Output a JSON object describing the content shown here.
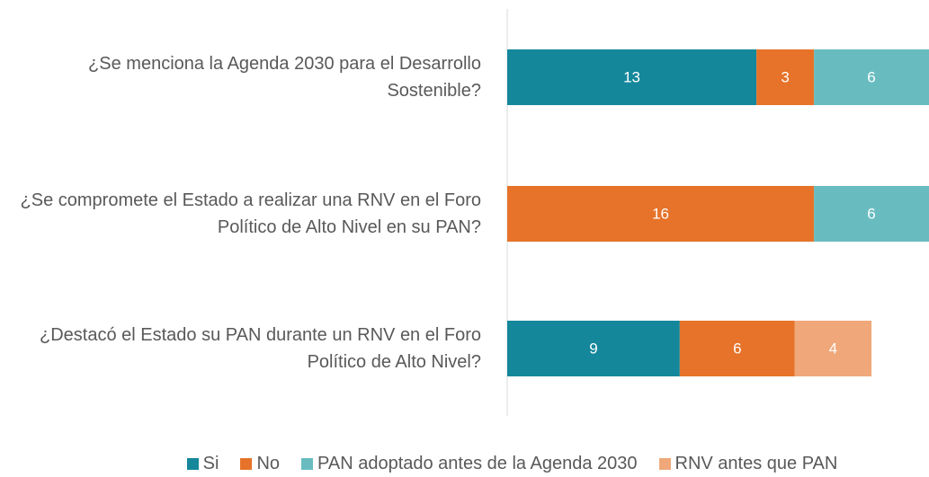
{
  "chart_data": {
    "type": "stacked-barh",
    "categories": [
      "¿Se menciona la Agenda 2030 para el Desarrollo Sostenible?",
      "¿Se compromete el Estado a realizar una RNV en el Foro Político de Alto Nivel en su PAN?",
      "¿Destacó el Estado su PAN durante un RNV en el Foro Político de Alto Nivel?"
    ],
    "series": [
      {
        "name": "Si",
        "color": "#14879b",
        "values": [
          13,
          null,
          9
        ]
      },
      {
        "name": "No",
        "color": "#e67329",
        "values": [
          3,
          16,
          6
        ]
      },
      {
        "name": "PAN adoptado antes de la Agenda 2030",
        "color": "#68bcc0",
        "values": [
          6,
          6,
          null
        ]
      },
      {
        "name": "RNV antes que PAN",
        "color": "#f0a87a",
        "values": [
          null,
          null,
          4
        ]
      }
    ],
    "legend": "bottom"
  }
}
